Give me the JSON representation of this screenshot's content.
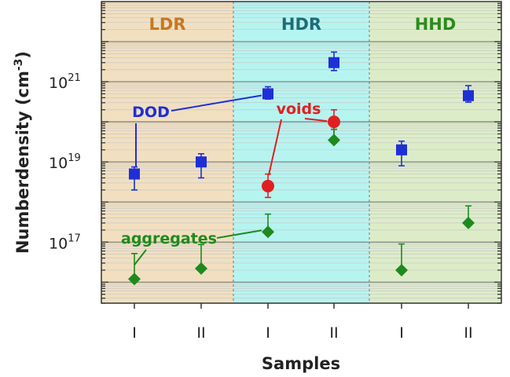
{
  "chart_data": {
    "type": "scatter",
    "ylabel": "Numberdensity (cm",
    "ylabel_sup": "-3",
    "ylabel_end": ")",
    "xlabel": "Samples",
    "y_scale": "log",
    "ylim": [
      3000000000000000.0,
      1e+23
    ],
    "x_ticks": [
      "I",
      "II",
      "I",
      "II",
      "I",
      "II"
    ],
    "y_ticks": [
      {
        "base": "10",
        "exp": "17",
        "value": 1e+17
      },
      {
        "base": "10",
        "exp": "19",
        "value": 1e+19
      },
      {
        "base": "10",
        "exp": "21",
        "value": 1e+21
      }
    ],
    "regions": [
      {
        "label": "LDR",
        "color": "#c87820",
        "fill": "#f1dfc0",
        "samples": [
          0,
          1
        ]
      },
      {
        "label": "HDR",
        "color": "#1a6e7a",
        "fill": "#b6f4f0",
        "samples": [
          2,
          3
        ]
      },
      {
        "label": "HHD",
        "color": "#2e8a1e",
        "fill": "#dcecc8",
        "samples": [
          4,
          5
        ]
      }
    ],
    "series": [
      {
        "name": "DOD",
        "marker": "square",
        "color": "#1f2fd6",
        "x": [
          0,
          1,
          2,
          3,
          4,
          5
        ],
        "y": [
          5e+18,
          1e+19,
          5e+20,
          3e+21,
          2e+19,
          4.5e+20
        ],
        "err_low": [
          3e+18,
          6e+18,
          1.3e+20,
          1.1e+21,
          1.2e+19,
          1.4e+20
        ],
        "err_high": [
          2.5e+18,
          6e+18,
          2.5e+20,
          2.5e+21,
          1.3e+19,
          3.5e+20
        ]
      },
      {
        "name": "voids",
        "marker": "circle",
        "color": "#e02020",
        "x": [
          2,
          3
        ],
        "y": [
          2.5e+18,
          1e+20
        ],
        "err_low": [
          1.2e+18,
          7e+19
        ],
        "err_high": [
          2.5e+18,
          1e+20
        ]
      },
      {
        "name": "aggregates",
        "marker": "diamond",
        "color": "#1e8a1e",
        "x": [
          0,
          1,
          2,
          3,
          4,
          5
        ],
        "y": [
          1.2e+16,
          2.2e+16,
          1.8e+17,
          3.5e+19,
          2e+16,
          3e+17
        ],
        "err_low": [
          0,
          0,
          0,
          0,
          0,
          0
        ],
        "err_high": [
          4e+16,
          6.5e+16,
          3.2e+17,
          3e+19,
          7e+16,
          5e+17
        ]
      }
    ],
    "annotations": [
      {
        "text": "DOD",
        "series": "DOD"
      },
      {
        "text": "voids",
        "series": "voids"
      },
      {
        "text": "aggregates",
        "series": "aggregates"
      }
    ]
  }
}
